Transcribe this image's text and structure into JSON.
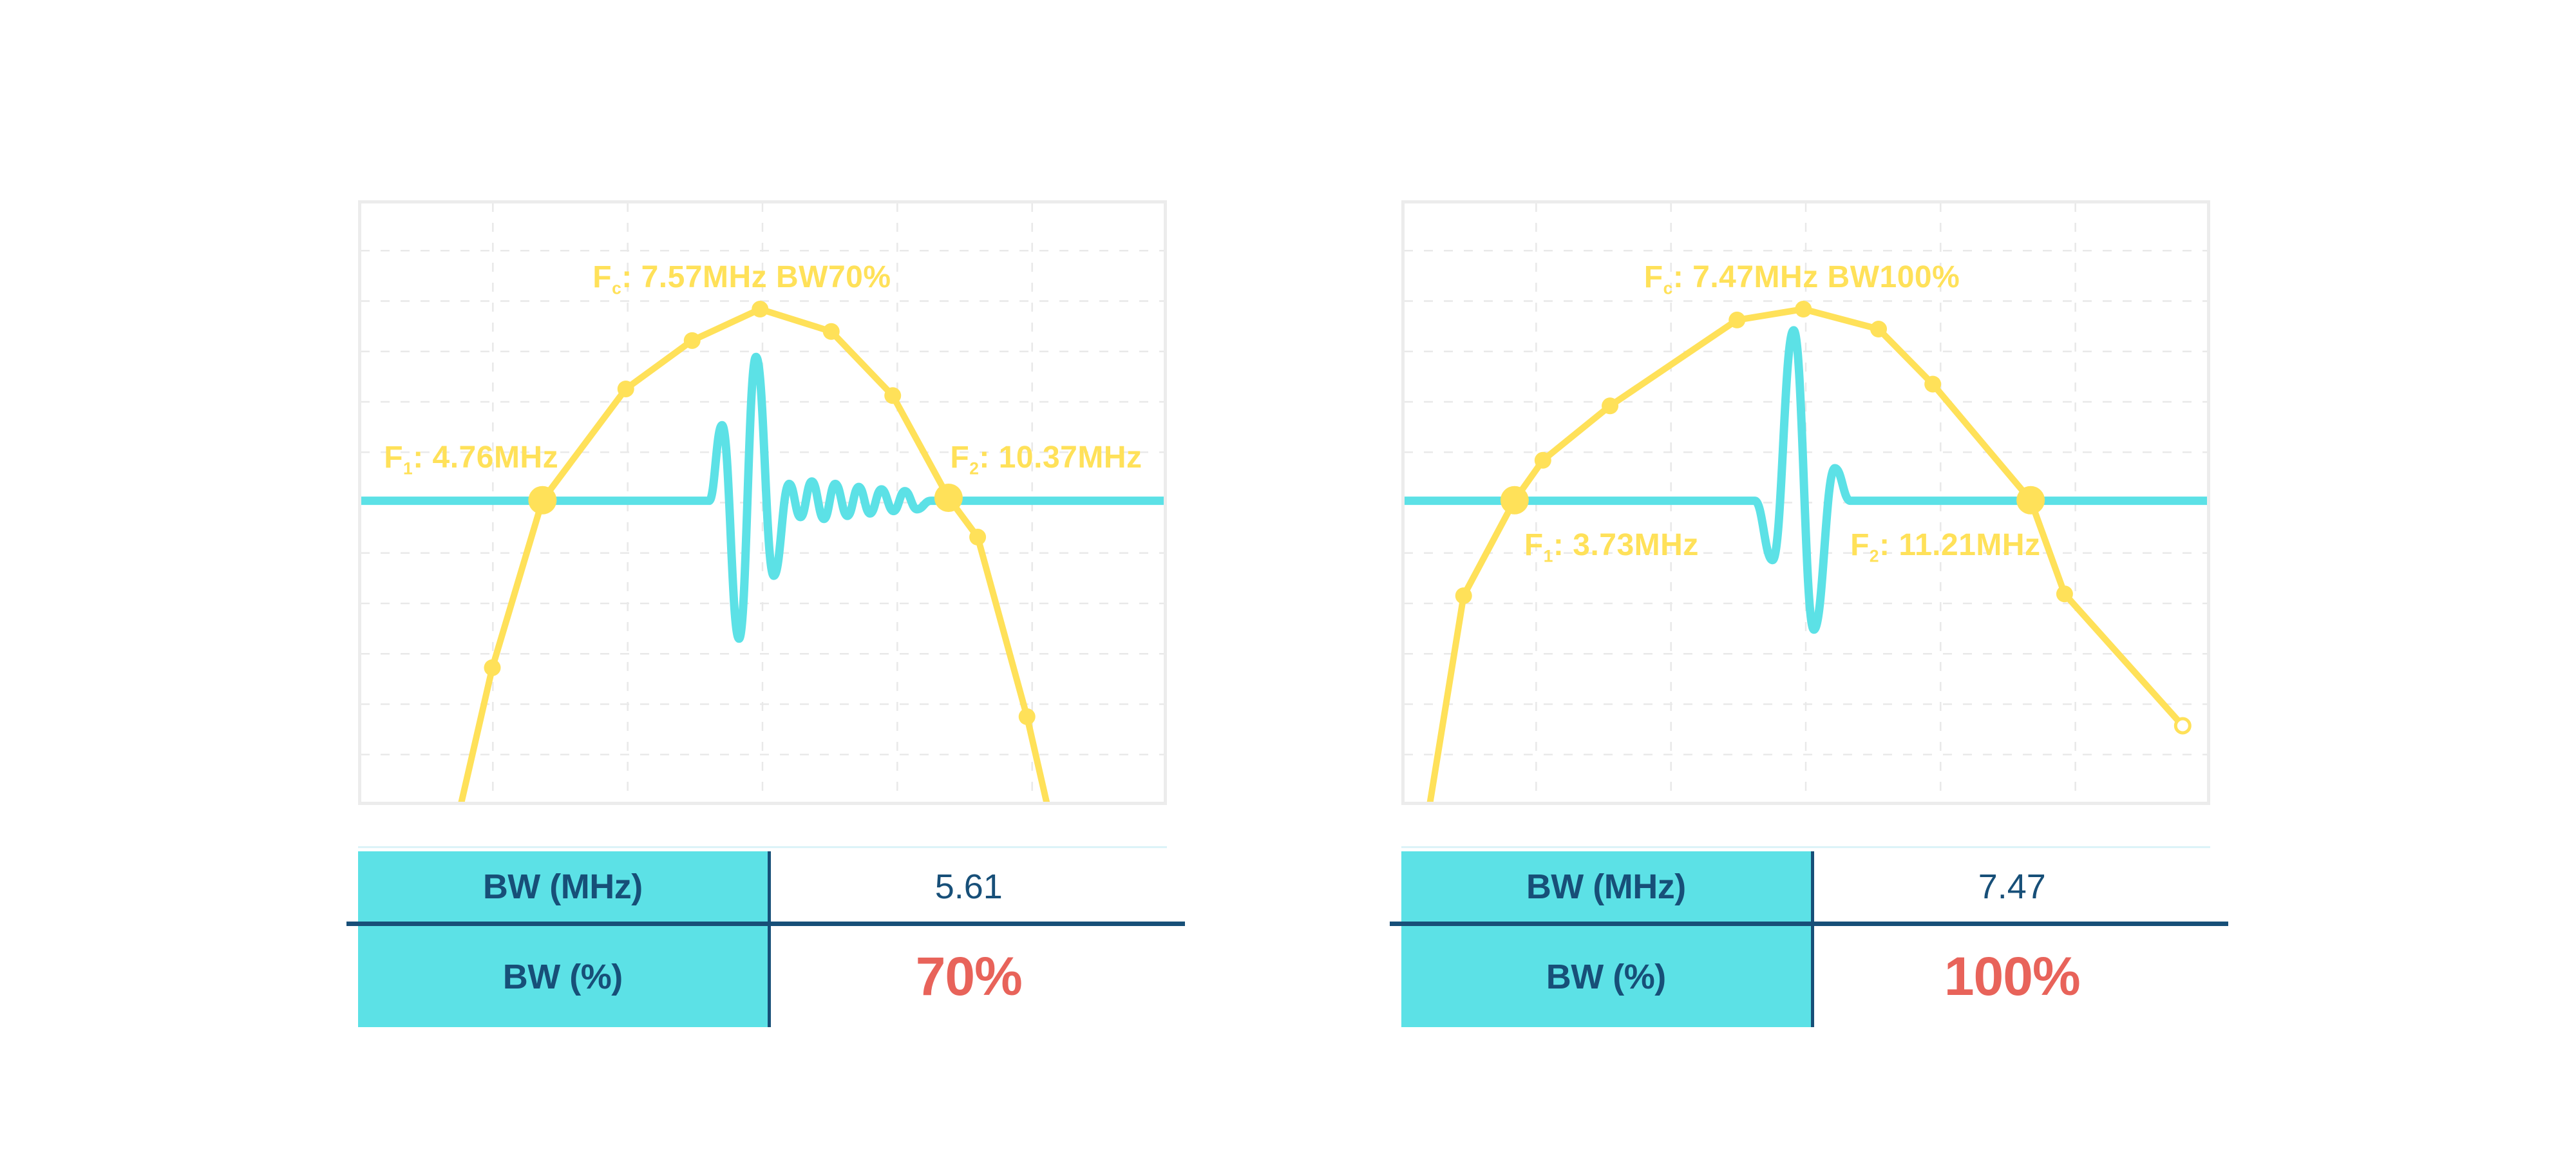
{
  "colors": {
    "yellow": "#FFE159",
    "cyan": "#5CE1E6",
    "navy": "#174F78",
    "red": "#E8635A",
    "grid": "#E9E9E9",
    "frame": "#ECECEC",
    "pale_line": "#DCF3F8"
  },
  "chart_data": [
    {
      "type": "line",
      "panel": "left",
      "title": "Pulse spectrum, 70% fractional bandwidth",
      "center_frequency_mhz": 7.57,
      "f1_mhz": 4.76,
      "f2_mhz": 10.37,
      "bandwidth_mhz": 5.61,
      "bandwidth_percent": 70,
      "grid": true,
      "axis_ticks_visible": false,
      "legend": "none",
      "annotations": {
        "fc": {
          "f": "F",
          "sub": "c",
          "rest": ": 7.57MHz BW70%",
          "pos": {
            "left": "29%",
            "top": "10.2%"
          }
        },
        "f1": {
          "f": "F",
          "sub": "1",
          "rest": ": 4.76MHz",
          "pos": {
            "left": "3.2%",
            "top": "40%"
          }
        },
        "f2": {
          "f": "F",
          "sub": "2",
          "rest": ": 10.37MHz",
          "pos": {
            "left": "73.2%",
            "top": "40%"
          }
        }
      },
      "threshold_line_y_pct": 49.7,
      "spectrum_points_pct": [
        [
          12.7,
          100,
          0
        ],
        [
          16.6,
          77.3,
          1
        ],
        [
          22.8,
          49.6,
          2
        ],
        [
          33.1,
          31.2,
          1
        ],
        [
          41.3,
          23.2,
          1
        ],
        [
          49.7,
          18.0,
          1
        ],
        [
          58.5,
          21.7,
          1
        ],
        [
          66.1,
          32.3,
          1
        ],
        [
          73.0,
          49.2,
          2
        ],
        [
          76.6,
          55.7,
          1
        ],
        [
          82.7,
          85.4,
          1
        ],
        [
          85.2,
          100,
          0
        ]
      ],
      "pulse_points_pct": [
        [
          0,
          49.7
        ],
        [
          43.4,
          49.7
        ],
        [
          45.0,
          37.2
        ],
        [
          47.1,
          72.5
        ],
        [
          49.2,
          25.9
        ],
        [
          51.4,
          62.1
        ],
        [
          53.3,
          46.9
        ],
        [
          54.7,
          52.4
        ],
        [
          56.1,
          46.5
        ],
        [
          57.6,
          52.7
        ],
        [
          59.0,
          46.9
        ],
        [
          60.5,
          52.2
        ],
        [
          61.9,
          47.4
        ],
        [
          63.3,
          51.8
        ],
        [
          64.7,
          47.8
        ],
        [
          66.2,
          51.4
        ],
        [
          67.6,
          48.1
        ],
        [
          69.1,
          51.1
        ],
        [
          70.8,
          49.7
        ],
        [
          100,
          49.7
        ]
      ],
      "table": {
        "rows": [
          {
            "label": "BW (MHz)",
            "value": "5.61"
          },
          {
            "label": "BW (%)",
            "value": "70%"
          }
        ]
      }
    },
    {
      "type": "line",
      "panel": "right",
      "title": "Pulse spectrum, 100% fractional bandwidth",
      "center_frequency_mhz": 7.47,
      "f1_mhz": 3.73,
      "f2_mhz": 11.21,
      "bandwidth_mhz": 7.47,
      "bandwidth_percent": 100,
      "grid": true,
      "axis_ticks_visible": false,
      "legend": "none",
      "annotations": {
        "fc": {
          "f": "F",
          "sub": "c",
          "rest": ": 7.47MHz BW100%",
          "pos": {
            "left": "30%",
            "top": "10.2%"
          }
        },
        "f1": {
          "f": "F",
          "sub": "1",
          "rest": ": 3.73MHz",
          "pos": {
            "left": "15.2%",
            "top": "54.5%"
          }
        },
        "f2": {
          "f": "F",
          "sub": "2",
          "rest": ": 11.21MHz",
          "pos": {
            "left": "55.5%",
            "top": "54.5%"
          }
        }
      },
      "threshold_line_y_pct": 49.7,
      "spectrum_points_pct": [
        [
          3.5,
          100,
          0
        ],
        [
          7.7,
          65.4,
          1
        ],
        [
          14.0,
          49.6,
          2
        ],
        [
          17.5,
          43.0,
          1
        ],
        [
          25.8,
          34.0,
          1
        ],
        [
          41.5,
          19.8,
          1
        ],
        [
          49.7,
          18.0,
          1
        ],
        [
          59.0,
          21.3,
          1
        ],
        [
          65.7,
          30.4,
          1
        ],
        [
          77.8,
          49.6,
          2
        ],
        [
          82.0,
          65.1,
          1
        ],
        [
          96.6,
          86.9,
          3
        ]
      ],
      "pulse_points_pct": [
        [
          0,
          49.7
        ],
        [
          43.7,
          49.7
        ],
        [
          45.9,
          59.5
        ],
        [
          48.5,
          21.5
        ],
        [
          51.0,
          71.0
        ],
        [
          53.6,
          44.3
        ],
        [
          55.5,
          49.7
        ],
        [
          100,
          49.7
        ]
      ],
      "table": {
        "rows": [
          {
            "label": "BW (MHz)",
            "value": "7.47"
          },
          {
            "label": "BW (%)",
            "value": "100%"
          }
        ]
      }
    }
  ]
}
